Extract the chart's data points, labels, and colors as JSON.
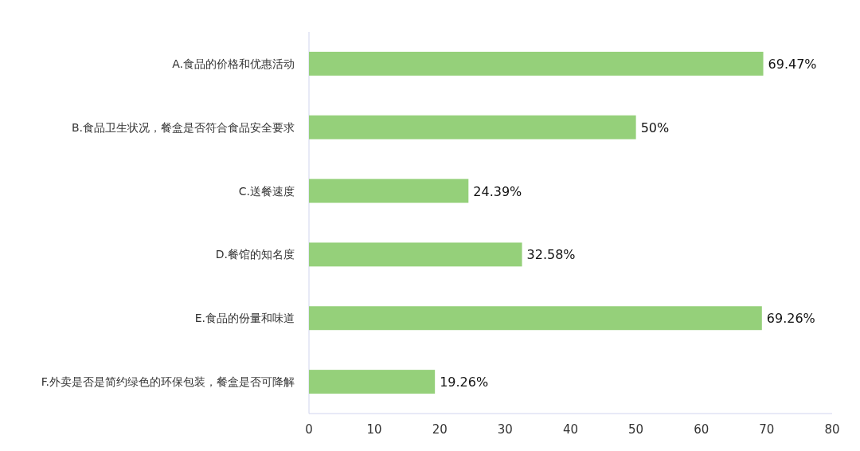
{
  "chart_data": {
    "type": "bar",
    "orientation": "horizontal",
    "categories": [
      "A.食品的价格和优惠活动",
      "B.食品卫生状况，餐盒是否符合食品安全要求",
      "C.送餐速度",
      "D.餐馆的知名度",
      "E.食品的份量和味道",
      "F.外卖是否是简约绿色的环保包装，餐盒是否可降解"
    ],
    "values": [
      69.47,
      50,
      24.39,
      32.58,
      69.26,
      19.26
    ],
    "value_labels": [
      "69.47%",
      "50%",
      "24.39%",
      "32.58%",
      "69.26%",
      "19.26%"
    ],
    "color": "#95d07a",
    "xlim": [
      0,
      80
    ],
    "xticks": [
      0,
      10,
      20,
      30,
      40,
      50,
      60,
      70,
      80
    ]
  }
}
